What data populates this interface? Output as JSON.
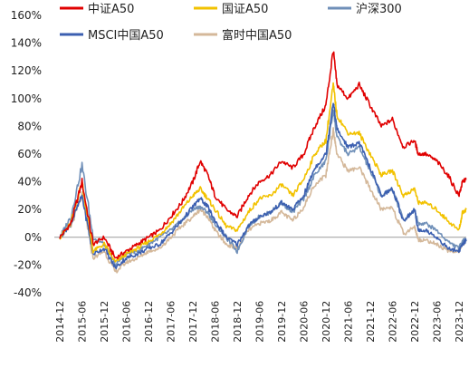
{
  "chart_data": {
    "type": "line",
    "title": "",
    "xlabel": "",
    "ylabel": "",
    "ylim": [
      -40,
      160
    ],
    "yticks": [
      "160%",
      "140%",
      "120%",
      "100%",
      "80%",
      "60%",
      "40%",
      "20%",
      "0%",
      "-20%",
      "-40%"
    ],
    "xticks": [
      "2014-12",
      "2015-06",
      "2015-12",
      "2016-06",
      "2016-12",
      "2017-06",
      "2017-12",
      "2018-06",
      "2018-12",
      "2019-06",
      "2019-12",
      "2020-06",
      "2020-12",
      "2021-06",
      "2021-12",
      "2022-06",
      "2022-12",
      "2023-06",
      "2023-12"
    ],
    "grid": false,
    "legend_position": "top",
    "x": [
      "2014-12",
      "2015-03",
      "2015-06",
      "2015-09",
      "2015-12",
      "2016-03",
      "2016-06",
      "2016-09",
      "2016-12",
      "2017-03",
      "2017-06",
      "2017-09",
      "2017-12",
      "2018-02",
      "2018-04",
      "2018-06",
      "2018-09",
      "2018-12",
      "2019-03",
      "2019-06",
      "2019-09",
      "2019-12",
      "2020-03",
      "2020-06",
      "2020-09",
      "2020-12",
      "2021-02",
      "2021-03",
      "2021-06",
      "2021-09",
      "2021-12",
      "2022-03",
      "2022-06",
      "2022-09",
      "2022-12",
      "2023-01",
      "2023-03",
      "2023-06",
      "2023-09",
      "2023-12",
      "2024-01",
      "2024-02"
    ],
    "series": [
      {
        "name": "中证A50",
        "color": "#e00000",
        "values": [
          0,
          10,
          40,
          -5,
          0,
          -15,
          -10,
          -5,
          0,
          5,
          15,
          25,
          40,
          55,
          45,
          30,
          20,
          15,
          30,
          40,
          45,
          55,
          50,
          60,
          80,
          95,
          135,
          110,
          100,
          110,
          95,
          80,
          85,
          65,
          70,
          60,
          60,
          55,
          45,
          30,
          40,
          42
        ]
      },
      {
        "name": "国证A50",
        "color": "#f2c200",
        "values": [
          0,
          10,
          40,
          -10,
          -5,
          -18,
          -12,
          -8,
          -3,
          2,
          10,
          20,
          30,
          35,
          28,
          20,
          8,
          5,
          18,
          28,
          30,
          38,
          30,
          42,
          60,
          70,
          110,
          88,
          75,
          75,
          60,
          45,
          48,
          30,
          35,
          25,
          25,
          20,
          12,
          5,
          18,
          20
        ]
      },
      {
        "name": "沪深300",
        "color": "#6f8fb8",
        "values": [
          0,
          15,
          52,
          0,
          -5,
          -20,
          -12,
          -10,
          -5,
          0,
          5,
          12,
          20,
          22,
          18,
          10,
          0,
          -10,
          8,
          15,
          18,
          25,
          18,
          28,
          45,
          55,
          92,
          72,
          60,
          65,
          48,
          30,
          35,
          12,
          20,
          10,
          10,
          5,
          -3,
          -8,
          -2,
          -2
        ]
      },
      {
        "name": "MSCI中国A50",
        "color": "#3b5fb0",
        "values": [
          0,
          10,
          30,
          -12,
          -8,
          -22,
          -15,
          -12,
          -8,
          -5,
          3,
          12,
          22,
          28,
          22,
          12,
          0,
          -5,
          8,
          15,
          18,
          25,
          20,
          30,
          50,
          60,
          98,
          78,
          65,
          68,
          50,
          30,
          35,
          12,
          20,
          5,
          5,
          0,
          -8,
          -10,
          -5,
          -2
        ]
      },
      {
        "name": "富时中国A50",
        "color": "#d4b89a",
        "values": [
          0,
          8,
          30,
          -15,
          -10,
          -25,
          -18,
          -15,
          -10,
          -8,
          0,
          8,
          15,
          20,
          15,
          5,
          -5,
          -8,
          5,
          10,
          12,
          18,
          12,
          22,
          38,
          45,
          78,
          60,
          48,
          50,
          35,
          20,
          22,
          2,
          8,
          -2,
          -2,
          -5,
          -10,
          -10,
          -5,
          -3
        ]
      }
    ]
  }
}
